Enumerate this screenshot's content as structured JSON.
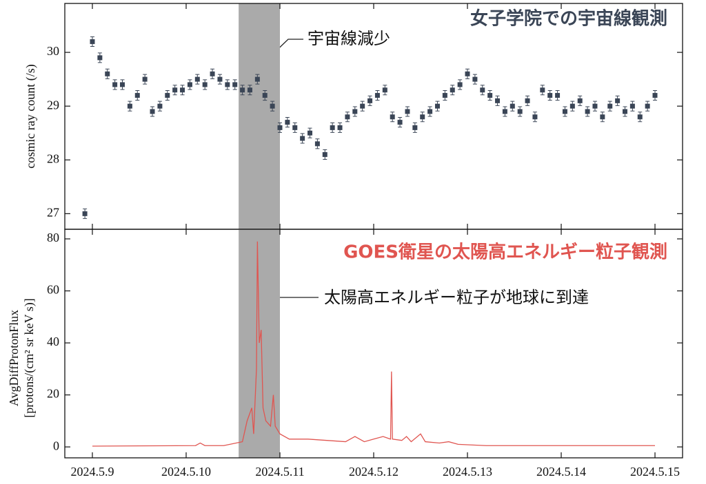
{
  "chart_data": [
    {
      "type": "scatter",
      "title": "女子学院での宇宙線観測",
      "annotation": "宇宙線減少",
      "ylabel": "cosmic ray count (/s)",
      "color": "#3a4556",
      "error": 0.09,
      "highlight": [
        10.56,
        11.0
      ],
      "xlim": [
        8.706,
        15.294
      ],
      "xticks": [
        9,
        10,
        11,
        12,
        13,
        14,
        15
      ],
      "ylim": [
        26.71,
        30.91
      ],
      "yticks": [
        27,
        28,
        29,
        30
      ],
      "x": [
        8.92,
        9.0,
        9.08,
        9.16,
        9.24,
        9.32,
        9.4,
        9.48,
        9.56,
        9.64,
        9.72,
        9.8,
        9.88,
        9.96,
        10.04,
        10.12,
        10.2,
        10.28,
        10.36,
        10.44,
        10.52,
        10.6,
        10.68,
        10.76,
        10.84,
        10.92,
        11.0,
        11.08,
        11.16,
        11.24,
        11.32,
        11.4,
        11.48,
        11.56,
        11.64,
        11.72,
        11.8,
        11.88,
        11.96,
        12.04,
        12.12,
        12.2,
        12.28,
        12.36,
        12.44,
        12.52,
        12.6,
        12.68,
        12.76,
        12.84,
        12.92,
        13.0,
        13.08,
        13.16,
        13.24,
        13.32,
        13.4,
        13.48,
        13.56,
        13.64,
        13.72,
        13.8,
        13.88,
        13.96,
        14.04,
        14.12,
        14.2,
        14.28,
        14.36,
        14.44,
        14.52,
        14.6,
        14.68,
        14.76,
        14.84,
        14.92,
        15.0
      ],
      "values": [
        27.0,
        30.2,
        29.9,
        29.6,
        29.4,
        29.4,
        29.0,
        29.2,
        29.5,
        28.9,
        29.0,
        29.2,
        29.3,
        29.3,
        29.4,
        29.5,
        29.4,
        29.6,
        29.5,
        29.4,
        29.4,
        29.3,
        29.3,
        29.5,
        29.2,
        29.0,
        28.6,
        28.7,
        28.6,
        28.4,
        28.5,
        28.3,
        28.1,
        28.6,
        28.6,
        28.8,
        28.9,
        29.0,
        29.1,
        29.2,
        29.3,
        28.8,
        28.7,
        28.9,
        28.6,
        28.8,
        28.9,
        29.0,
        29.2,
        29.3,
        29.4,
        29.6,
        29.5,
        29.3,
        29.2,
        29.1,
        28.9,
        29.0,
        28.9,
        29.1,
        28.8,
        29.3,
        29.2,
        29.2,
        28.9,
        29.0,
        29.1,
        28.9,
        29.0,
        28.8,
        29.0,
        29.1,
        28.9,
        29.0,
        28.8,
        29.0,
        29.2
      ]
    },
    {
      "type": "line",
      "title": "GOES衛星の太陽高エネルギー粒子観測",
      "annotation": "太陽高エネルギー粒子が地球に到達",
      "ylabel": [
        "AvgDiffProtonFlux",
        "[protons/(cm² sr keV s)]"
      ],
      "color": "#e05550",
      "highlight": [
        10.56,
        11.0
      ],
      "xlim": [
        8.706,
        15.294
      ],
      "xticks": [
        {
          "value": 9,
          "label": "2024.5.9"
        },
        {
          "value": 10,
          "label": "2024.5.10"
        },
        {
          "value": 11,
          "label": "2024.5.11"
        },
        {
          "value": 12,
          "label": "2024.5.12"
        },
        {
          "value": 13,
          "label": "2024.5.13"
        },
        {
          "value": 14,
          "label": "2024.5.14"
        },
        {
          "value": 15,
          "label": "2024.5.15"
        }
      ],
      "ylim": [
        -4.2,
        83.7
      ],
      "yticks": [
        0,
        20,
        40,
        60,
        80
      ],
      "x": [
        9.0,
        9.5,
        10.1,
        10.15,
        10.2,
        10.4,
        10.6,
        10.65,
        10.7,
        10.72,
        10.75,
        10.76,
        10.78,
        10.8,
        10.82,
        10.85,
        10.9,
        10.93,
        10.95,
        11.0,
        11.1,
        11.3,
        11.5,
        11.7,
        11.8,
        11.9,
        12.0,
        12.1,
        12.18,
        12.19,
        12.2,
        12.3,
        12.35,
        12.4,
        12.5,
        12.55,
        12.7,
        12.8,
        12.9,
        13.2,
        13.5,
        14.0,
        14.5,
        15.0
      ],
      "values": [
        0.3,
        0.4,
        0.5,
        1.5,
        0.5,
        0.5,
        2,
        10,
        15,
        5,
        30,
        79,
        40,
        45,
        15,
        10,
        8,
        20,
        8,
        5,
        3,
        3,
        2.5,
        2,
        4,
        2,
        3,
        4,
        3,
        29,
        3,
        2.5,
        4,
        2,
        5,
        2,
        1.5,
        2,
        1,
        0.5,
        0.5,
        0.5,
        0.5,
        0.5
      ]
    }
  ]
}
